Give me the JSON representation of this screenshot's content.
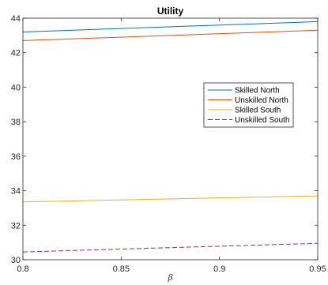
{
  "chart_data": {
    "type": "line",
    "title": "Utility",
    "xlabel": "β",
    "ylabel": "",
    "xlim": [
      0.8,
      0.95
    ],
    "ylim": [
      30,
      44
    ],
    "x_ticks": [
      0.8,
      0.85,
      0.9,
      0.95
    ],
    "x_tick_labels": [
      "0.8",
      "0.85",
      "0.9",
      "0.95"
    ],
    "y_ticks": [
      30,
      32,
      34,
      36,
      38,
      40,
      42,
      44
    ],
    "y_tick_labels": [
      "30",
      "32",
      "34",
      "36",
      "38",
      "40",
      "42",
      "44"
    ],
    "grid": false,
    "legend_position": "right",
    "series": [
      {
        "name": "Skilled North",
        "color": "#0072BD",
        "dash": "solid",
        "x": [
          0.8,
          0.95
        ],
        "y": [
          43.2,
          43.8
        ]
      },
      {
        "name": "Unskilled North",
        "color": "#D95319",
        "dash": "solid",
        "x": [
          0.8,
          0.95
        ],
        "y": [
          42.7,
          43.3
        ]
      },
      {
        "name": "Skilled South",
        "color": "#EDB120",
        "dash": "solid",
        "x": [
          0.8,
          0.95
        ],
        "y": [
          33.35,
          33.7
        ]
      },
      {
        "name": "Unskilled South",
        "color": "#7E2F8E",
        "dash": "dashed",
        "x": [
          0.8,
          0.95
        ],
        "y": [
          30.45,
          30.95
        ]
      }
    ]
  }
}
